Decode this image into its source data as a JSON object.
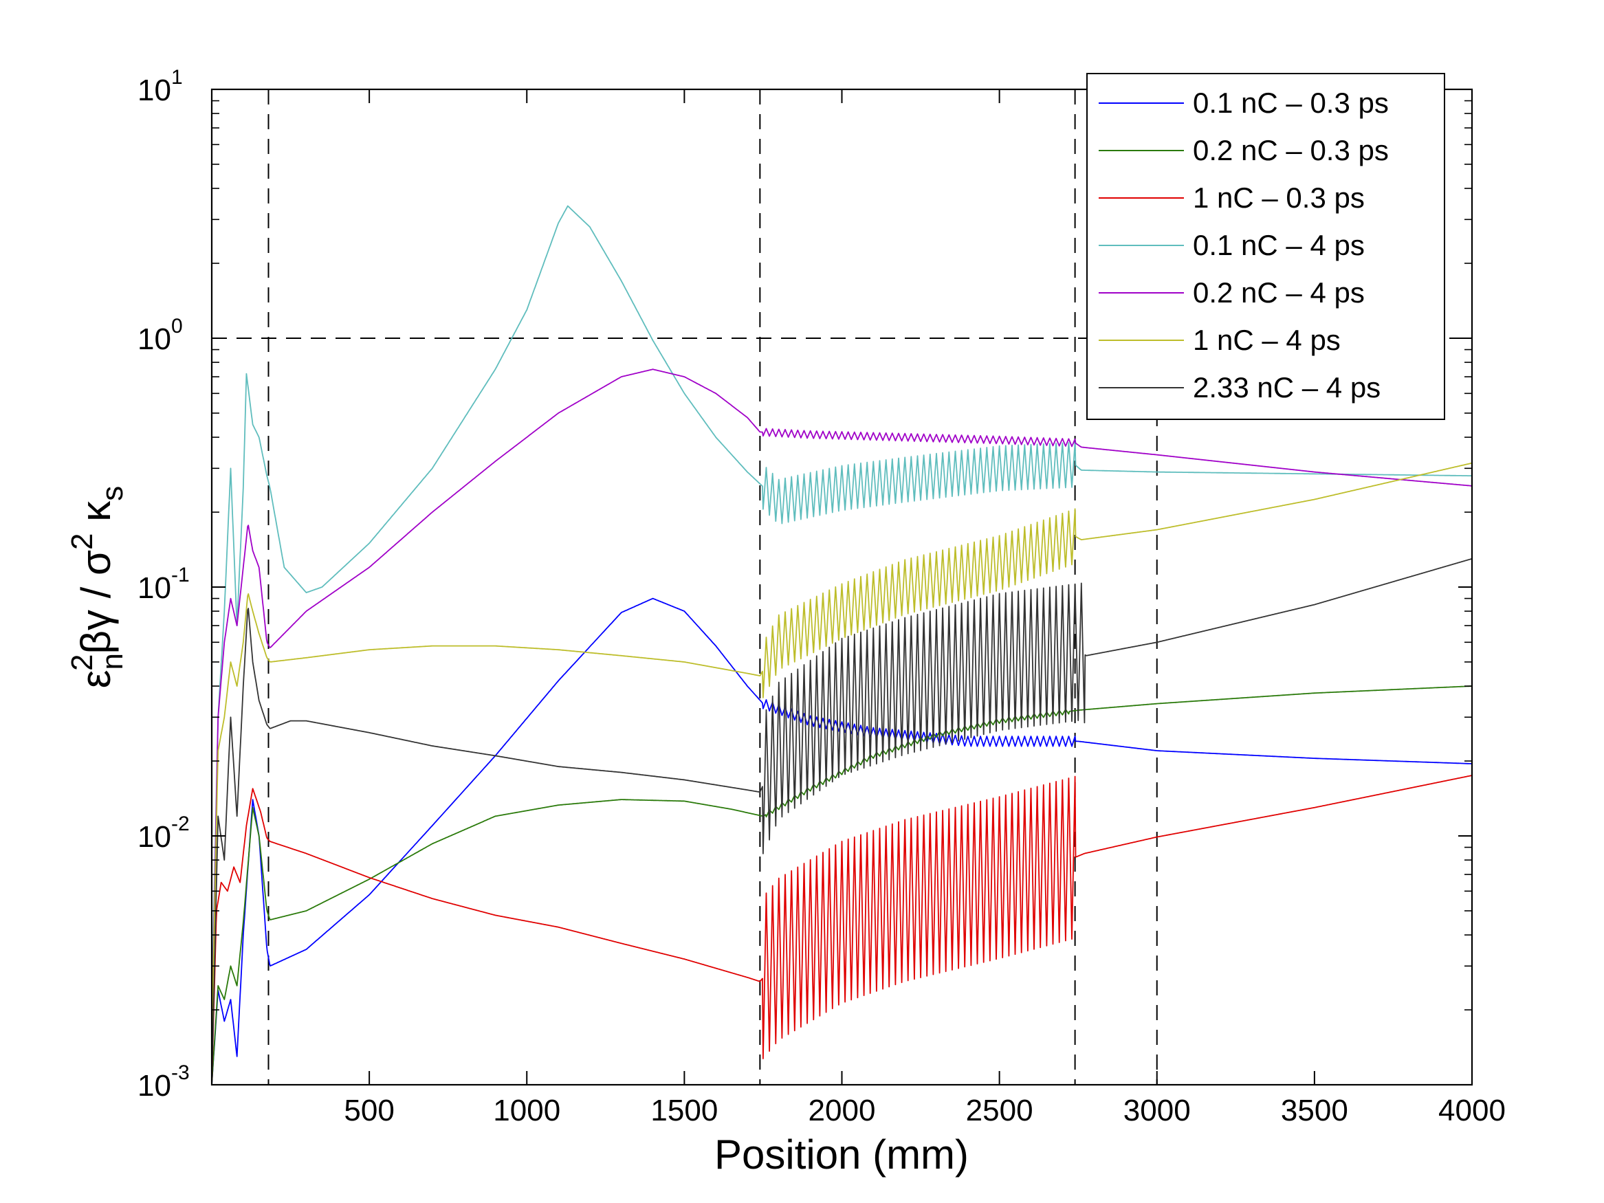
{
  "chart_data": {
    "type": "line",
    "title": "",
    "xlabel": "Position (mm)",
    "ylabel": "ε_n² βγ / σ² κ_s",
    "ylabel_parts": {
      "eps": "ε",
      "sub_n": "n",
      "sup_2a": "2",
      "betagamma": "βγ / σ",
      "sup_2b": "2",
      "kappa": " κ",
      "sub_s": "s"
    },
    "xlim": [
      0,
      4000
    ],
    "ylim": [
      0.001,
      10
    ],
    "yscale": "log",
    "xticks": [
      500,
      1000,
      1500,
      2000,
      2500,
      3000,
      3500,
      4000
    ],
    "xtick_labels": [
      "500",
      "1000",
      "1500",
      "2000",
      "2500",
      "3000",
      "3500",
      "4000"
    ],
    "yticks": [
      {
        "value": 0.001,
        "base": "10",
        "exp": "-3"
      },
      {
        "value": 0.01,
        "base": "10",
        "exp": "-2"
      },
      {
        "value": 0.1,
        "base": "10",
        "exp": "-1"
      },
      {
        "value": 1,
        "base": "10",
        "exp": "0"
      },
      {
        "value": 10,
        "base": "10",
        "exp": "1"
      }
    ],
    "reference_lines": {
      "vertical_x": [
        180,
        1740,
        2740,
        3000
      ],
      "horizontal_y": [
        1
      ]
    },
    "legend_position": "top-right",
    "series": [
      {
        "name": "0.1 nC – 0.3 ps",
        "color": "#0000ff",
        "ripple": {
          "start": 1750,
          "end": 2740,
          "amp": 0.04
        },
        "points": [
          [
            0,
            0.001
          ],
          [
            20,
            0.0024
          ],
          [
            40,
            0.0018
          ],
          [
            60,
            0.0022
          ],
          [
            80,
            0.0013
          ],
          [
            100,
            0.004
          ],
          [
            130,
            0.014
          ],
          [
            150,
            0.01
          ],
          [
            175,
            0.0035
          ],
          [
            185,
            0.003
          ],
          [
            300,
            0.0035
          ],
          [
            500,
            0.0058
          ],
          [
            700,
            0.011
          ],
          [
            900,
            0.021
          ],
          [
            1100,
            0.042
          ],
          [
            1300,
            0.079
          ],
          [
            1400,
            0.09
          ],
          [
            1500,
            0.08
          ],
          [
            1600,
            0.058
          ],
          [
            1700,
            0.04
          ],
          [
            1750,
            0.034
          ],
          [
            1900,
            0.029
          ],
          [
            2100,
            0.026
          ],
          [
            2400,
            0.024
          ],
          [
            2750,
            0.024
          ],
          [
            3000,
            0.022
          ],
          [
            3500,
            0.0205
          ],
          [
            4000,
            0.0195
          ]
        ]
      },
      {
        "name": "0.2 nC – 0.3 ps",
        "color": "#2a7a0a",
        "ripple": {
          "start": 1760,
          "end": 2720,
          "amp": 0.02
        },
        "points": [
          [
            0,
            0.001
          ],
          [
            20,
            0.0025
          ],
          [
            40,
            0.0022
          ],
          [
            60,
            0.003
          ],
          [
            80,
            0.0025
          ],
          [
            100,
            0.0045
          ],
          [
            130,
            0.013
          ],
          [
            150,
            0.01
          ],
          [
            175,
            0.005
          ],
          [
            185,
            0.0046
          ],
          [
            300,
            0.005
          ],
          [
            500,
            0.0067
          ],
          [
            700,
            0.0093
          ],
          [
            900,
            0.012
          ],
          [
            1100,
            0.0133
          ],
          [
            1300,
            0.014
          ],
          [
            1500,
            0.0138
          ],
          [
            1650,
            0.0128
          ],
          [
            1750,
            0.012
          ],
          [
            1900,
            0.0155
          ],
          [
            2100,
            0.021
          ],
          [
            2300,
            0.0255
          ],
          [
            2500,
            0.029
          ],
          [
            2750,
            0.032
          ],
          [
            3000,
            0.034
          ],
          [
            3500,
            0.0375
          ],
          [
            4000,
            0.04
          ]
        ]
      },
      {
        "name": "1 nC – 0.3 ps",
        "color": "#e00000",
        "ripple": {
          "start": 1750,
          "end": 2740,
          "amp": 0.65
        },
        "points": [
          [
            0,
            0.001
          ],
          [
            15,
            0.005
          ],
          [
            30,
            0.0065
          ],
          [
            50,
            0.006
          ],
          [
            70,
            0.0075
          ],
          [
            90,
            0.0065
          ],
          [
            110,
            0.011
          ],
          [
            130,
            0.0155
          ],
          [
            155,
            0.0125
          ],
          [
            175,
            0.0098
          ],
          [
            185,
            0.0095
          ],
          [
            300,
            0.0085
          ],
          [
            500,
            0.0068
          ],
          [
            700,
            0.0056
          ],
          [
            900,
            0.0048
          ],
          [
            1100,
            0.0043
          ],
          [
            1300,
            0.0037
          ],
          [
            1500,
            0.0032
          ],
          [
            1700,
            0.0027
          ],
          [
            1740,
            0.0026
          ],
          [
            1800,
            0.0032
          ],
          [
            2000,
            0.0045
          ],
          [
            2200,
            0.0055
          ],
          [
            2500,
            0.0068
          ],
          [
            2740,
            0.0082
          ],
          [
            2770,
            0.0085
          ],
          [
            3000,
            0.0099
          ],
          [
            3500,
            0.013
          ],
          [
            4000,
            0.0175
          ]
        ]
      },
      {
        "name": "0.1 nC – 4 ps",
        "color": "#5fbdbd",
        "ripple": {
          "start": 1750,
          "end": 2740,
          "amp": 0.18
        },
        "points": [
          [
            0,
            0.002
          ],
          [
            20,
            0.03
          ],
          [
            40,
            0.08
          ],
          [
            60,
            0.3
          ],
          [
            80,
            0.07
          ],
          [
            100,
            0.25
          ],
          [
            110,
            0.72
          ],
          [
            130,
            0.45
          ],
          [
            150,
            0.4
          ],
          [
            175,
            0.28
          ],
          [
            185,
            0.25
          ],
          [
            230,
            0.12
          ],
          [
            300,
            0.095
          ],
          [
            350,
            0.1
          ],
          [
            500,
            0.15
          ],
          [
            700,
            0.3
          ],
          [
            900,
            0.75
          ],
          [
            1000,
            1.3
          ],
          [
            1100,
            2.9
          ],
          [
            1130,
            3.4
          ],
          [
            1200,
            2.8
          ],
          [
            1300,
            1.7
          ],
          [
            1400,
            0.98
          ],
          [
            1500,
            0.6
          ],
          [
            1600,
            0.4
          ],
          [
            1700,
            0.29
          ],
          [
            1740,
            0.26
          ],
          [
            1800,
            0.22
          ],
          [
            2000,
            0.25
          ],
          [
            2200,
            0.27
          ],
          [
            2500,
            0.3
          ],
          [
            2740,
            0.31
          ],
          [
            2760,
            0.295
          ],
          [
            3000,
            0.29
          ],
          [
            3500,
            0.285
          ],
          [
            4000,
            0.28
          ]
        ]
      },
      {
        "name": "0.2 nC – 4 ps",
        "color": "#a000c8",
        "ripple": {
          "start": 1750,
          "end": 2740,
          "amp": 0.03
        },
        "points": [
          [
            0,
            0.0015
          ],
          [
            20,
            0.03
          ],
          [
            40,
            0.06
          ],
          [
            60,
            0.09
          ],
          [
            80,
            0.07
          ],
          [
            100,
            0.12
          ],
          [
            115,
            0.18
          ],
          [
            130,
            0.14
          ],
          [
            150,
            0.12
          ],
          [
            175,
            0.06
          ],
          [
            185,
            0.057
          ],
          [
            300,
            0.08
          ],
          [
            500,
            0.12
          ],
          [
            700,
            0.2
          ],
          [
            900,
            0.32
          ],
          [
            1100,
            0.5
          ],
          [
            1300,
            0.7
          ],
          [
            1400,
            0.75
          ],
          [
            1500,
            0.7
          ],
          [
            1600,
            0.6
          ],
          [
            1700,
            0.48
          ],
          [
            1740,
            0.42
          ],
          [
            1900,
            0.41
          ],
          [
            2200,
            0.4
          ],
          [
            2500,
            0.39
          ],
          [
            2740,
            0.38
          ],
          [
            2760,
            0.365
          ],
          [
            3000,
            0.34
          ],
          [
            3500,
            0.29
          ],
          [
            4000,
            0.255
          ]
        ]
      },
      {
        "name": "1 nC – 4 ps",
        "color": "#bdbd2a",
        "ripple": {
          "start": 1750,
          "end": 2740,
          "amp": 0.22
        },
        "points": [
          [
            0,
            0.0015
          ],
          [
            20,
            0.022
          ],
          [
            40,
            0.03
          ],
          [
            60,
            0.05
          ],
          [
            80,
            0.04
          ],
          [
            100,
            0.06
          ],
          [
            115,
            0.095
          ],
          [
            130,
            0.08
          ],
          [
            150,
            0.065
          ],
          [
            175,
            0.052
          ],
          [
            185,
            0.05
          ],
          [
            300,
            0.052
          ],
          [
            500,
            0.056
          ],
          [
            700,
            0.058
          ],
          [
            900,
            0.058
          ],
          [
            1100,
            0.056
          ],
          [
            1300,
            0.053
          ],
          [
            1500,
            0.05
          ],
          [
            1700,
            0.045
          ],
          [
            1740,
            0.044
          ],
          [
            1800,
            0.06
          ],
          [
            2000,
            0.08
          ],
          [
            2200,
            0.1
          ],
          [
            2500,
            0.125
          ],
          [
            2740,
            0.16
          ],
          [
            2760,
            0.155
          ],
          [
            3000,
            0.17
          ],
          [
            3500,
            0.225
          ],
          [
            4000,
            0.315
          ]
        ]
      },
      {
        "name": "2.33 nC – 4 ps",
        "color": "#333333",
        "ripple": {
          "start": 1750,
          "end": 2770,
          "amp": 0.55
        },
        "points": [
          [
            0,
            0.001
          ],
          [
            20,
            0.012
          ],
          [
            40,
            0.008
          ],
          [
            60,
            0.03
          ],
          [
            80,
            0.012
          ],
          [
            100,
            0.04
          ],
          [
            115,
            0.085
          ],
          [
            130,
            0.05
          ],
          [
            150,
            0.035
          ],
          [
            175,
            0.028
          ],
          [
            185,
            0.027
          ],
          [
            250,
            0.029
          ],
          [
            300,
            0.029
          ],
          [
            500,
            0.026
          ],
          [
            700,
            0.023
          ],
          [
            900,
            0.021
          ],
          [
            1100,
            0.019
          ],
          [
            1300,
            0.018
          ],
          [
            1500,
            0.0168
          ],
          [
            1700,
            0.0153
          ],
          [
            1740,
            0.015
          ],
          [
            1800,
            0.022
          ],
          [
            2000,
            0.033
          ],
          [
            2200,
            0.04
          ],
          [
            2500,
            0.05
          ],
          [
            2760,
            0.055
          ],
          [
            2775,
            0.053
          ],
          [
            3000,
            0.06
          ],
          [
            3500,
            0.085
          ],
          [
            4000,
            0.13
          ]
        ]
      }
    ]
  }
}
